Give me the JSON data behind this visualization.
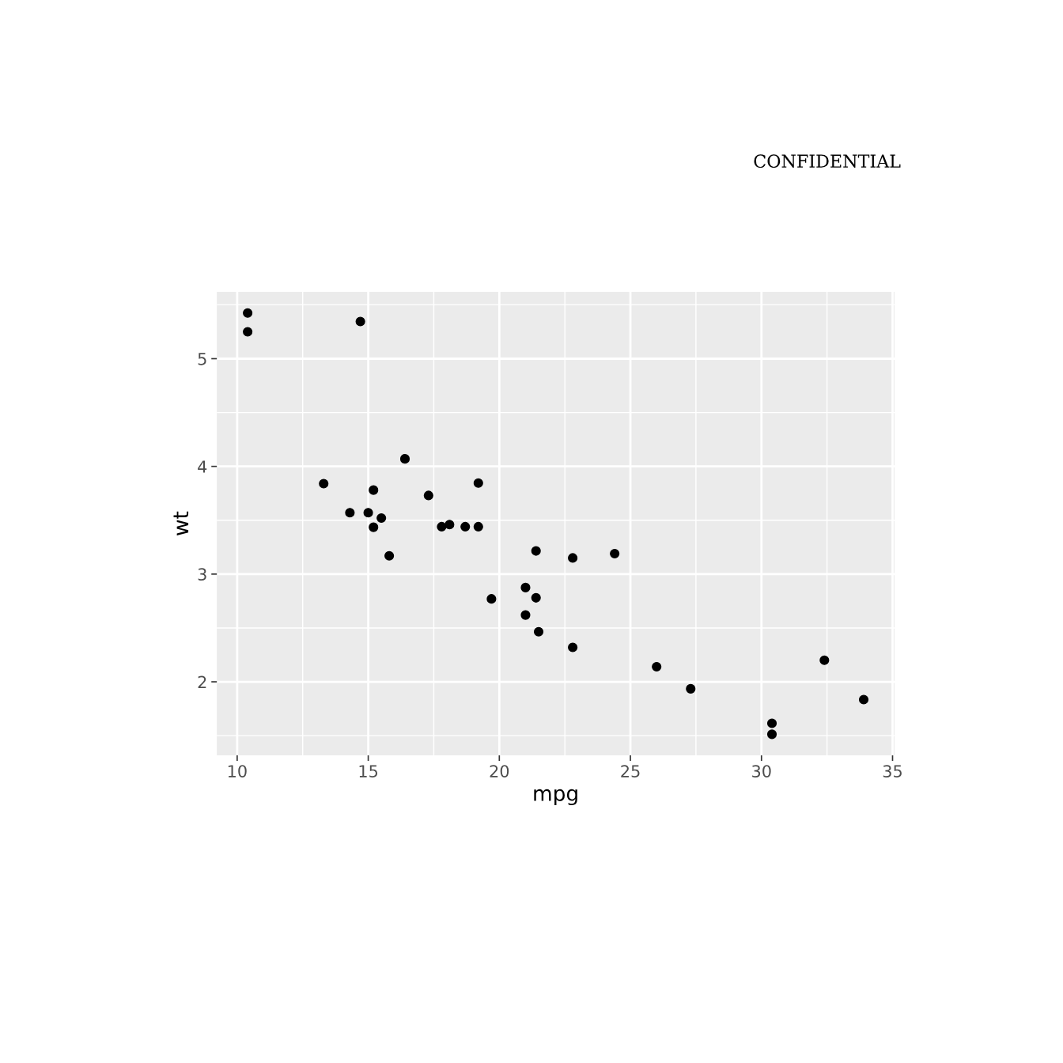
{
  "chart_data": {
    "type": "scatter",
    "xlabel": "mpg",
    "ylabel": "wt",
    "annotations": [
      "CONFIDENTIAL"
    ],
    "x": [
      21.0,
      21.0,
      22.8,
      21.4,
      18.7,
      18.1,
      14.3,
      24.4,
      22.8,
      19.2,
      17.8,
      16.4,
      17.3,
      15.2,
      10.4,
      10.4,
      14.7,
      32.4,
      30.4,
      33.9,
      21.5,
      15.5,
      15.2,
      13.3,
      19.2,
      27.3,
      26.0,
      30.4,
      15.8,
      19.7,
      15.0,
      21.4
    ],
    "series": [
      {
        "color": "#000000",
        "values": [
          2.62,
          2.875,
          2.32,
          3.215,
          3.44,
          3.46,
          3.57,
          3.19,
          3.15,
          3.44,
          3.44,
          4.07,
          3.73,
          3.78,
          5.25,
          5.424,
          5.345,
          2.2,
          1.615,
          1.835,
          2.465,
          3.52,
          3.435,
          3.84,
          3.845,
          1.935,
          2.14,
          1.513,
          3.17,
          2.77,
          3.57,
          2.78
        ]
      }
    ],
    "xlim": [
      9.225,
      35.075
    ],
    "ylim": [
      1.317,
      5.62
    ],
    "xticks": [
      10,
      15,
      20,
      25,
      30,
      35
    ],
    "yticks": [
      2,
      3,
      4,
      5
    ],
    "grid": true,
    "marker": "circle",
    "legend": false
  }
}
